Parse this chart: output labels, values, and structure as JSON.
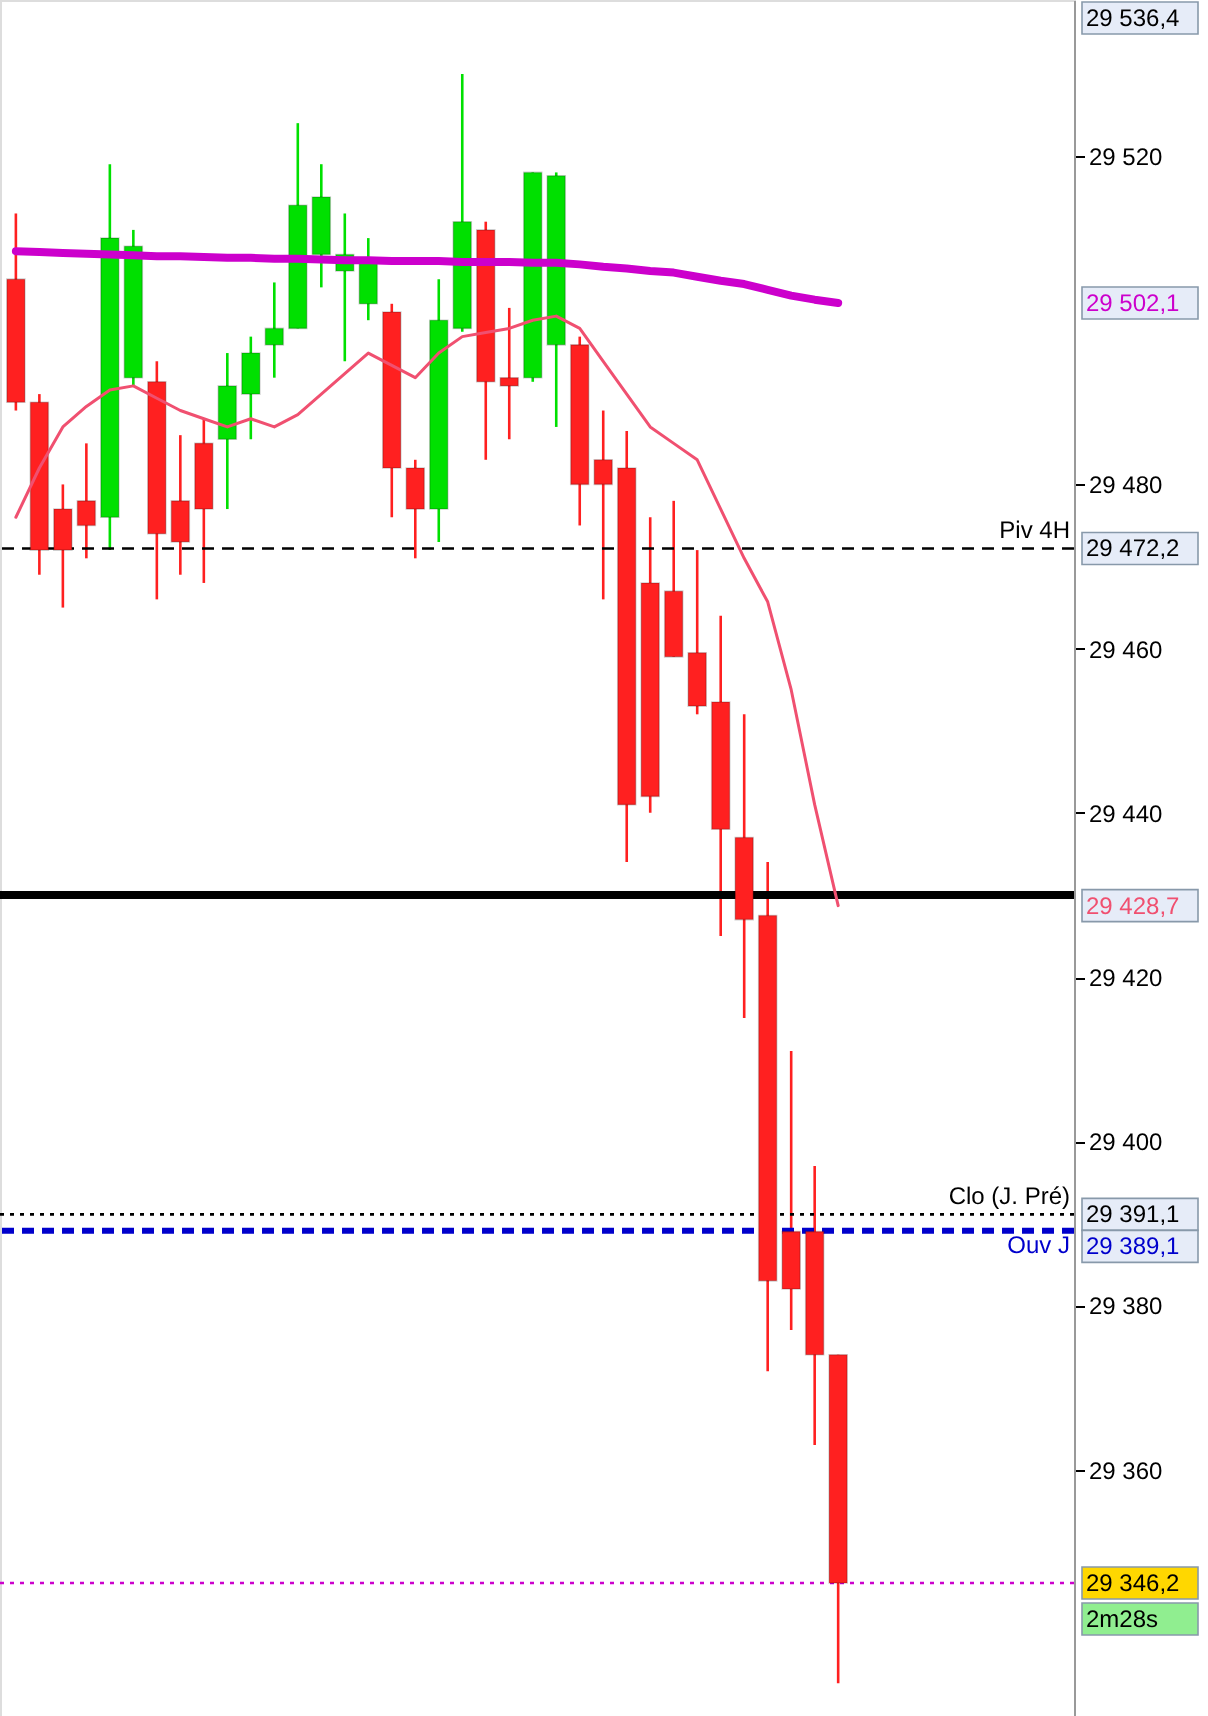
{
  "chart_data": {
    "type": "candlestick",
    "categories": [
      null,
      null,
      null,
      null,
      null,
      null,
      null,
      null,
      null,
      null,
      null,
      null,
      null,
      null,
      null,
      null,
      null,
      null,
      null,
      null,
      null,
      null,
      null,
      null,
      null,
      null,
      null,
      null,
      null,
      null,
      null,
      null,
      null,
      null,
      null,
      null
    ],
    "ohlc": [
      [
        29505,
        29513,
        29489,
        29490
      ],
      [
        29490,
        29491,
        29469,
        29472
      ],
      [
        29477,
        29480,
        29465,
        29472
      ],
      [
        29478,
        29485,
        29471,
        29475
      ],
      [
        29476,
        29519,
        29472,
        29510
      ],
      [
        29493,
        29511,
        29492,
        29509
      ],
      [
        29492.5,
        29495,
        29466,
        29474
      ],
      [
        29478,
        29486,
        29469,
        29473
      ],
      [
        29485,
        29488,
        29468,
        29477
      ],
      [
        29485.5,
        29496,
        29477,
        29492
      ],
      [
        29491,
        29498,
        29485.5,
        29496
      ],
      [
        29497,
        29504.6,
        29493,
        29499
      ],
      [
        29499,
        29524,
        29499,
        29514
      ],
      [
        29508,
        29519,
        29504,
        29515
      ],
      [
        29506,
        29513,
        29495,
        29508
      ],
      [
        29502,
        29510,
        29500,
        29507
      ],
      [
        29501,
        29502,
        29476,
        29482
      ],
      [
        29482,
        29483,
        29471,
        29477
      ],
      [
        29477,
        29505,
        29473,
        29500
      ],
      [
        29499,
        29530,
        29498.6,
        29512
      ],
      [
        29511,
        29512,
        29483,
        29492.5
      ],
      [
        29493,
        29501.5,
        29485.5,
        29492
      ],
      [
        29493,
        29518,
        29492.5,
        29518
      ],
      [
        29497,
        29518,
        29487,
        29517.6
      ],
      [
        29497,
        29498,
        29475,
        29480
      ],
      [
        29483,
        29489,
        29466,
        29480
      ],
      [
        29482,
        29486.5,
        29434,
        29441
      ],
      [
        29468,
        29476,
        29440,
        29442
      ],
      [
        29467,
        29478,
        29459,
        29459
      ],
      [
        29459.5,
        29472,
        29452,
        29453
      ],
      [
        29453.5,
        29464,
        29425,
        29438
      ],
      [
        29437,
        29452,
        29415,
        29427
      ],
      [
        29427.5,
        29434,
        29372,
        29383
      ],
      [
        29389,
        29411,
        29377,
        29382
      ],
      [
        29389,
        29397,
        29363,
        29374
      ],
      [
        29374,
        29374,
        29334,
        29346.2
      ]
    ],
    "colors": [
      "#ff2020",
      "#ff2020",
      "#ff2020",
      "#ff2020",
      "#00e000",
      "#00e000",
      "#ff2020",
      "#ff2020",
      "#ff2020",
      "#00e000",
      "#00e000",
      "#00e000",
      "#00e000",
      "#00e000",
      "#00e000",
      "#00e000",
      "#ff2020",
      "#ff2020",
      "#00e000",
      "#00e000",
      "#ff2020",
      "#ff2020",
      "#00e000",
      "#00e000",
      "#ff2020",
      "#ff2020",
      "#ff2020",
      "#ff2020",
      "#ff2020",
      "#ff2020",
      "#ff2020",
      "#ff2020",
      "#ff2020",
      "#ff2020",
      "#ff2020",
      "#ff2020"
    ],
    "series": [
      {
        "type": "line",
        "color": "#cc00cc",
        "values": [
          29508.4,
          29508.3,
          29508.2,
          29508.1,
          29508,
          29507.9,
          29507.8,
          29507.8,
          29507.7,
          29507.6,
          29507.6,
          29507.5,
          29507.5,
          29507.4,
          29507.3,
          29507.3,
          29507.2,
          29507.2,
          29507.2,
          29507.1,
          29507.1,
          29507.1,
          29507,
          29507,
          29506.8,
          29506.5,
          29506.3,
          29506,
          29505.8,
          29505.3,
          29504.8,
          29504.4,
          29503.7,
          29503,
          29502.5,
          29502.1
        ]
      },
      {
        "type": "line",
        "color": "#f05070",
        "values": [
          29476,
          29482,
          29487,
          29489.5,
          29491.5,
          29492,
          29490.5,
          29489,
          29488,
          29487,
          29488,
          29487,
          29488.5,
          29491,
          29493.5,
          29496,
          29494.5,
          29493,
          29496,
          29498,
          29498.5,
          29499,
          29500,
          29500.5,
          29499,
          29495,
          29491,
          29487,
          29485,
          29483,
          29477,
          29471,
          29465.7,
          29455,
          29441,
          29428.7
        ]
      }
    ],
    "ylim": [
      29330,
      29539
    ],
    "yticks": [
      {
        "value": 29360,
        "label": "29 360"
      },
      {
        "value": 29380,
        "label": "29 380"
      },
      {
        "value": 29400,
        "label": "29 400"
      },
      {
        "value": 29420,
        "label": "29 420"
      },
      {
        "value": 29440,
        "label": "29 440"
      },
      {
        "value": 29460,
        "label": "29 460"
      },
      {
        "value": 29480,
        "label": "29 480"
      },
      {
        "value": 29520,
        "label": "29 520"
      }
    ],
    "tick_labels": "y",
    "grid": false,
    "ref_lines": [
      {
        "axis": "y",
        "value": 29472.2,
        "label": "Piv 4H",
        "color": "#000000",
        "line_style": "dashed"
      },
      {
        "axis": "y",
        "value": 29430,
        "color": "#000000",
        "line_style": "solid"
      },
      {
        "axis": "y",
        "value": 29391.1,
        "label": "Clo (J. Pré)",
        "color": "#000000",
        "line_style": "dotted"
      },
      {
        "axis": "y",
        "value": 29389.1,
        "label": "Ouv J",
        "color": "#0000cc",
        "line_style": "dashed"
      },
      {
        "axis": "y",
        "value": 29346.2,
        "color": "#cc00cc",
        "line_style": "dotted"
      }
    ],
    "annotations": [
      "29 536,4",
      "29 502,1",
      "29 472,2",
      "29 428,7",
      "29 391,1",
      "29 389,1",
      "29 346,2",
      "2m28s"
    ]
  }
}
